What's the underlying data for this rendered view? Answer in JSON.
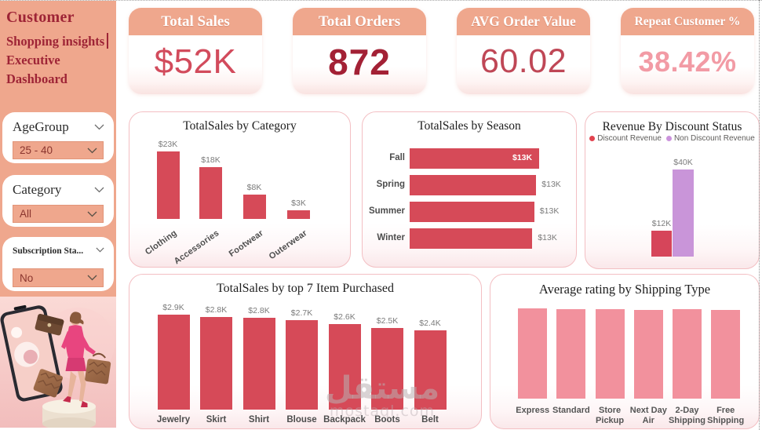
{
  "page": {
    "background": "#ffffff",
    "sidebar_color": "#efa78d",
    "accent_red": "#d64a58",
    "accent_pink": "#f2919d",
    "accent_purple": "#c995d9",
    "card_border": "#f3bfc3"
  },
  "sidebar": {
    "title_line1": "Customer",
    "title_line2": "Shopping insights",
    "title_line3": "Executive Dashboard",
    "filters": [
      {
        "label": "AgeGroup",
        "value": "25 - 40"
      },
      {
        "label": "Category",
        "value": "All"
      },
      {
        "label": "Subscription Sta...",
        "value": "No"
      }
    ],
    "illustration": "woman-shopping-out-of-phone"
  },
  "kpis": [
    {
      "label": "Total Sales",
      "value": "$52K",
      "value_color": "#d24b5c"
    },
    {
      "label": "Total Orders",
      "value": "872",
      "value_color": "#a32135"
    },
    {
      "label": "AVG Order Value",
      "value": "60.02",
      "value_color": "#bf4756"
    },
    {
      "label": "Repeat Customer %",
      "value": "38.42%",
      "value_color": "#f29ba5"
    }
  ],
  "chart_data": [
    {
      "id": "category",
      "type": "bar",
      "orientation": "vertical",
      "title": "TotalSales by Category",
      "categories": [
        "Clothing",
        "Accessories",
        "Footwear",
        "Outerwear"
      ],
      "values": [
        23100,
        17900,
        8300,
        3200
      ],
      "data_labels": [
        "$23K",
        "$18K",
        "$8K",
        "$3K"
      ],
      "bar_color": "#d64a58",
      "ylim": [
        0,
        23100
      ],
      "grid": false,
      "legend": null
    },
    {
      "id": "season",
      "type": "bar",
      "orientation": "horizontal",
      "title": "TotalSales by Season",
      "categories": [
        "Fall",
        "Spring",
        "Summer",
        "Winter"
      ],
      "values": [
        13300,
        13000,
        12800,
        12600
      ],
      "data_labels": [
        "$13K",
        "$13K",
        "$13K",
        "$13K"
      ],
      "bar_color": "#d64a58",
      "xlim": [
        0,
        13300
      ],
      "grid": false,
      "legend": null,
      "first_label_inside": true
    },
    {
      "id": "discount",
      "type": "bar",
      "orientation": "vertical",
      "title": "Revenue By Discount Status",
      "categories": [
        "Discount Revenue",
        "Non Discount Revenue"
      ],
      "values": [
        12000,
        40000
      ],
      "data_labels": [
        "$12K",
        "$40K"
      ],
      "colors": [
        "#d6455a",
        "#c995d9"
      ],
      "ylim": [
        0,
        40000
      ],
      "grid": false,
      "legend": [
        {
          "label": "Discount Revenue",
          "color": "#e2434f"
        },
        {
          "label": "Non Discount Revenue",
          "color": "#cb93dc"
        }
      ]
    },
    {
      "id": "items",
      "type": "bar",
      "orientation": "vertical",
      "title": "TotalSales by top 7 Item Purchased",
      "categories": [
        "Jewelry",
        "Skirt",
        "Shirt",
        "Blouse",
        "Backpack",
        "Boots",
        "Belt"
      ],
      "values": [
        2900,
        2830,
        2800,
        2740,
        2610,
        2500,
        2430
      ],
      "data_labels": [
        "$2.9K",
        "$2.8K",
        "$2.8K",
        "$2.7K",
        "$2.6K",
        "$2.5K",
        "$2.4K"
      ],
      "bar_color": "#d64a58",
      "ylim": [
        0,
        2900
      ],
      "grid": false,
      "legend": null
    },
    {
      "id": "shipping",
      "type": "bar",
      "orientation": "vertical",
      "title": "Average rating by Shipping Type",
      "categories": [
        "Express",
        "Standard",
        "Store Pickup",
        "Next Day Air",
        "2-Day Shipping",
        "Free Shipping"
      ],
      "values": [
        3.8,
        3.76,
        3.76,
        3.74,
        3.76,
        3.72
      ],
      "data_labels": [],
      "bar_color": "#f2919d",
      "ylim": [
        0,
        3.8
      ],
      "grid": false,
      "legend": null
    }
  ],
  "watermark": {
    "arabic": "مستقل",
    "latin": "mostaql.com"
  }
}
